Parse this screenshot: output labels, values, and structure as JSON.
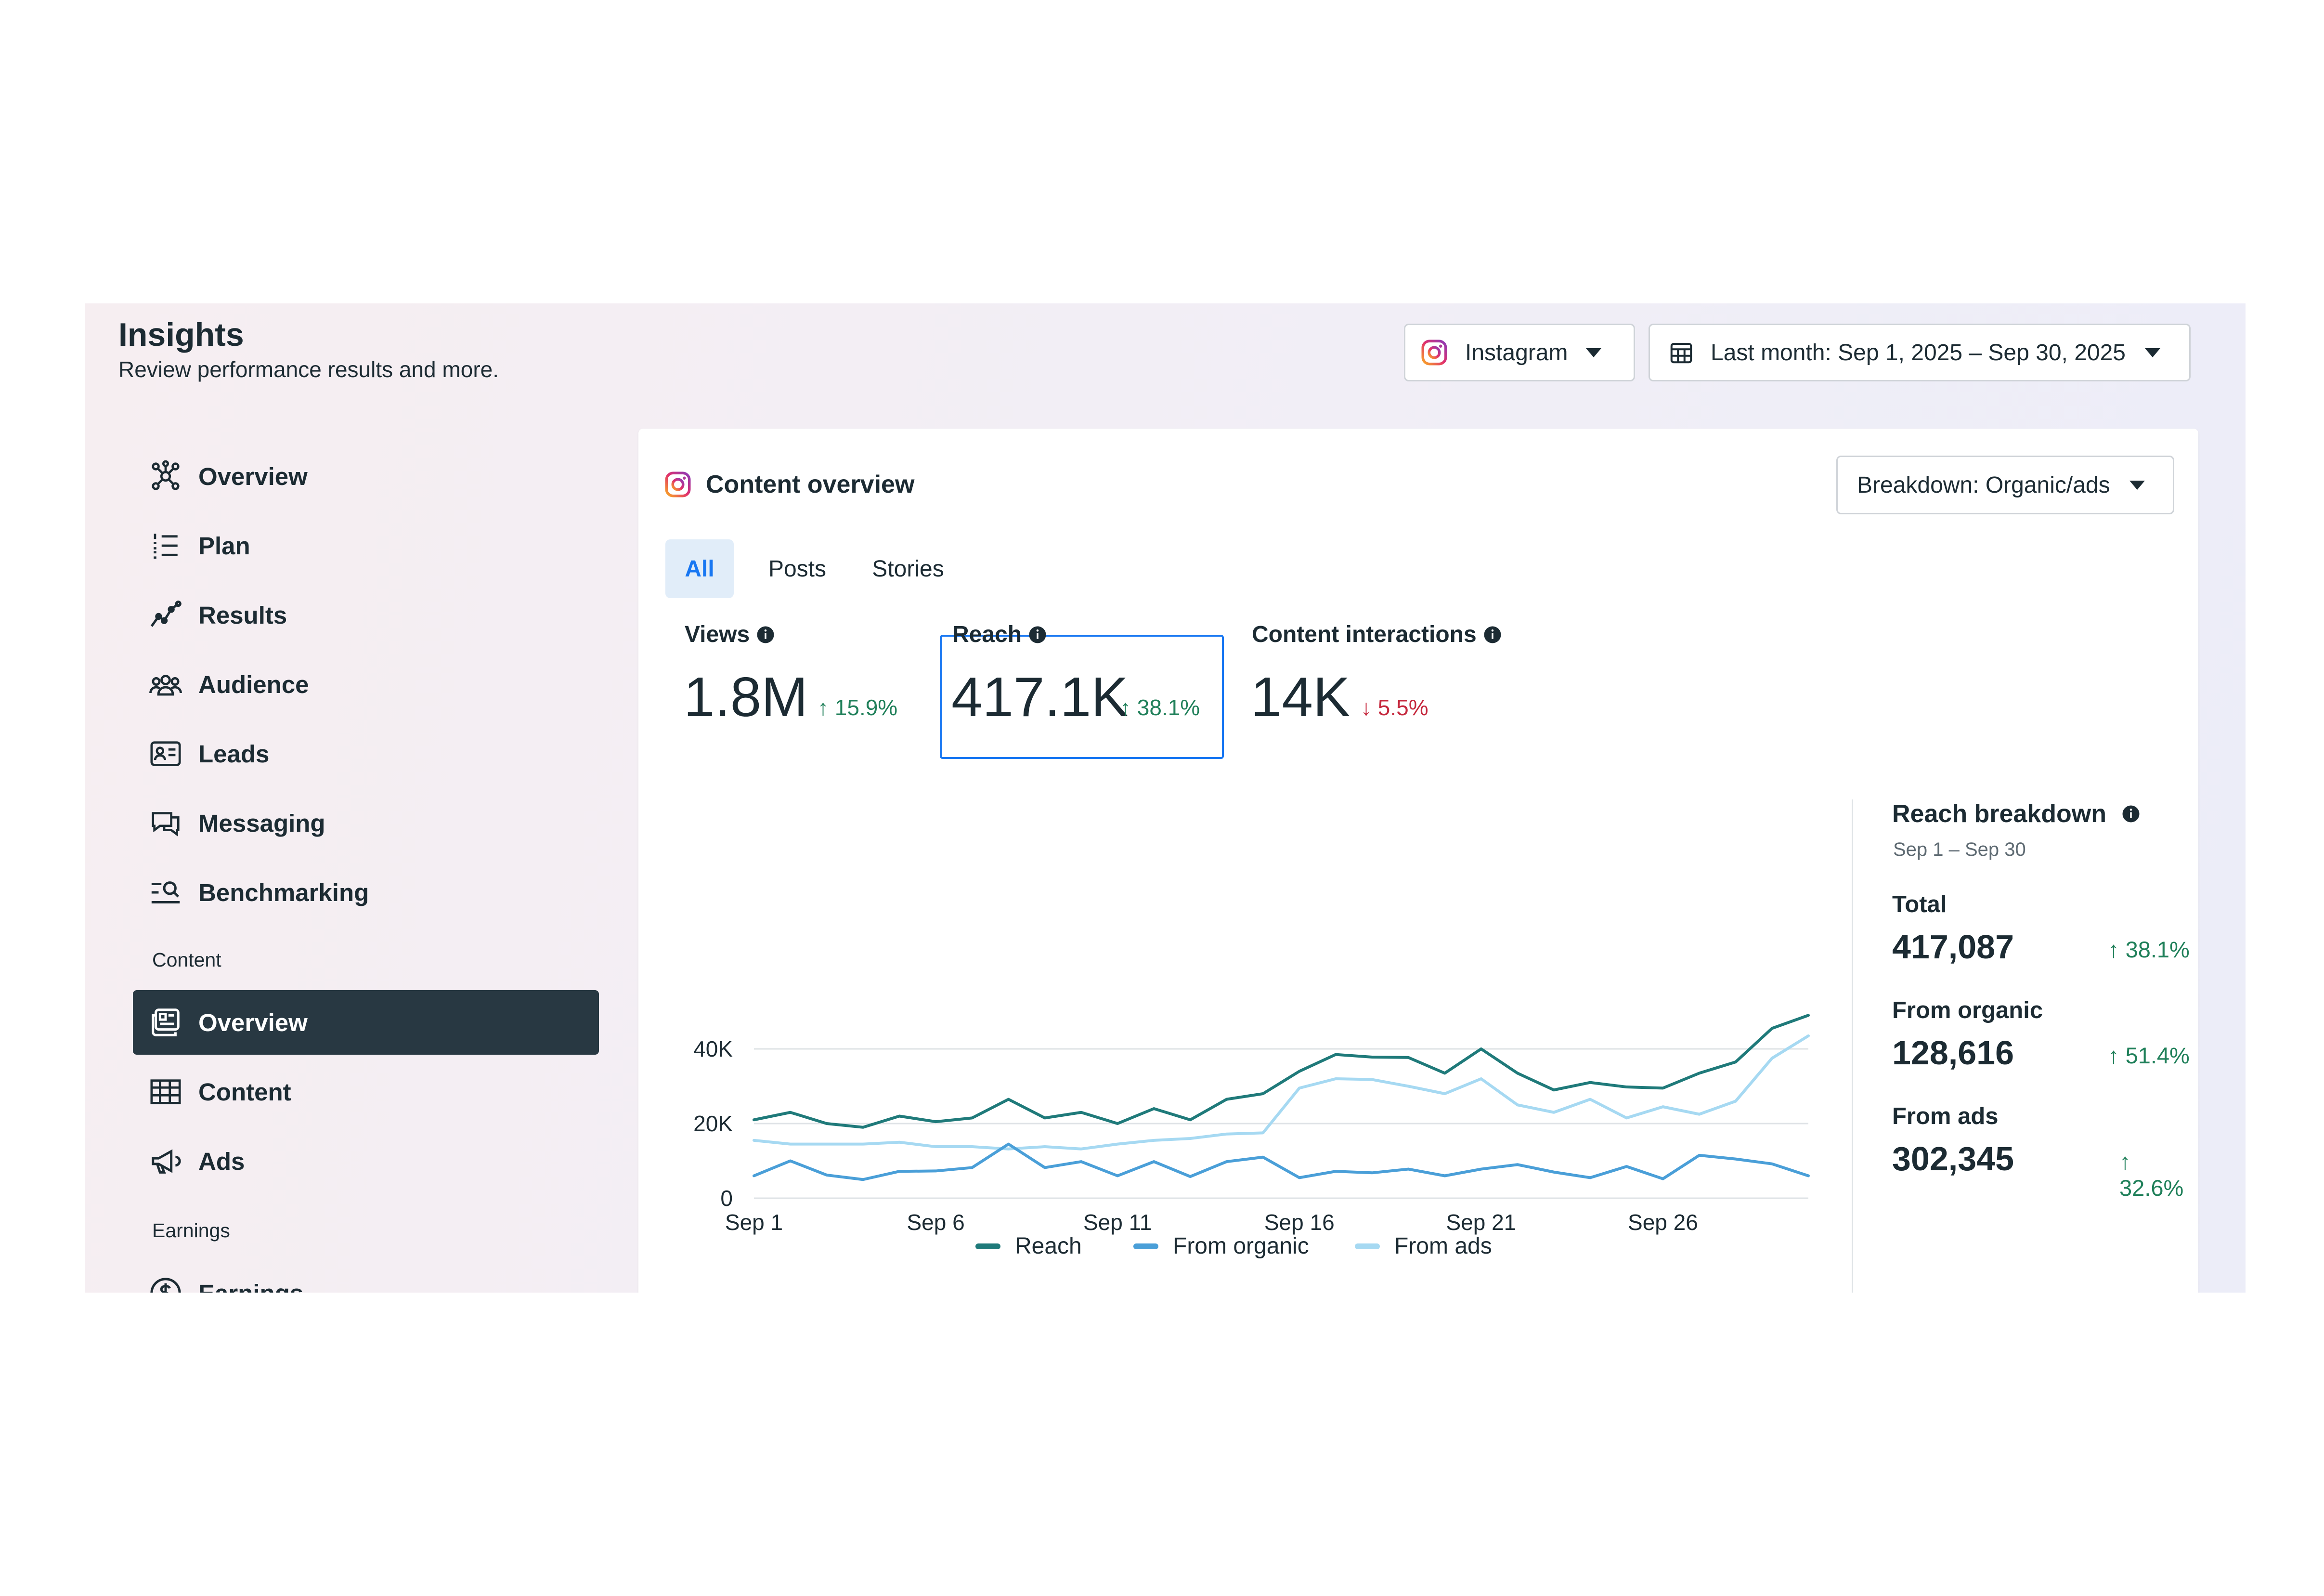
{
  "header": {
    "title": "Insights",
    "subtitle": "Review performance results and more.",
    "platform_select": "Instagram",
    "date_select": "Last month: Sep 1, 2025 – Sep 30, 2025"
  },
  "sidebar": {
    "items": [
      {
        "label": "Overview",
        "icon": "network-icon"
      },
      {
        "label": "Plan",
        "icon": "list-icon"
      },
      {
        "label": "Results",
        "icon": "trend-icon"
      },
      {
        "label": "Audience",
        "icon": "people-icon"
      },
      {
        "label": "Leads",
        "icon": "contact-card-icon"
      },
      {
        "label": "Messaging",
        "icon": "chat-icon"
      },
      {
        "label": "Benchmarking",
        "icon": "benchmark-search-icon"
      }
    ],
    "content_section": "Content",
    "content_items": [
      {
        "label": "Overview",
        "icon": "content-overview-icon",
        "active": true
      },
      {
        "label": "Content",
        "icon": "table-icon"
      },
      {
        "label": "Ads",
        "icon": "megaphone-icon"
      }
    ],
    "earnings_section": "Earnings",
    "earnings_items": [
      {
        "label": "Earnings",
        "icon": "dollar-icon"
      }
    ]
  },
  "card": {
    "title": "Content overview",
    "breakdown_select": "Breakdown: Organic/ads",
    "tabs": [
      "All",
      "Posts",
      "Stories"
    ],
    "active_tab": "All"
  },
  "metrics": [
    {
      "label": "Views",
      "value": "1.8M",
      "delta": "15.9%",
      "direction": "up"
    },
    {
      "label": "Reach",
      "value": "417.1K",
      "delta": "38.1%",
      "direction": "up"
    },
    {
      "label": "Content interactions",
      "value": "14K",
      "delta": "5.5%",
      "direction": "down"
    }
  ],
  "chart_data": {
    "type": "line",
    "title": "",
    "xlabel": "",
    "ylabel": "",
    "x": [
      1,
      2,
      3,
      4,
      5,
      6,
      7,
      8,
      9,
      10,
      11,
      12,
      13,
      14,
      15,
      16,
      17,
      18,
      19,
      20,
      21,
      22,
      23,
      24,
      25,
      26,
      27,
      28,
      29,
      30
    ],
    "x_tick_labels": [
      "Sep 1",
      "Sep 6",
      "Sep 11",
      "Sep 16",
      "Sep 21",
      "Sep 26"
    ],
    "x_tick_positions": [
      1,
      6,
      11,
      16,
      21,
      26
    ],
    "y_tick_labels": [
      "0",
      "20K",
      "40K"
    ],
    "y_tick_values": [
      0,
      20000,
      40000
    ],
    "ylim": [
      0,
      50000
    ],
    "grid": true,
    "legend_position": "bottom",
    "series": [
      {
        "name": "Reach",
        "color": "#1f7a7a",
        "values": [
          21000,
          23000,
          20000,
          19000,
          22000,
          20500,
          21500,
          26500,
          21500,
          23000,
          20000,
          24000,
          21000,
          26500,
          28000,
          34000,
          38500,
          37800,
          37700,
          33500,
          40000,
          33500,
          29000,
          31000,
          29800,
          29500,
          33500,
          36500,
          45500,
          49000
        ]
      },
      {
        "name": "From organic",
        "color": "#4a9fd8",
        "values": [
          6000,
          10000,
          6200,
          5000,
          7200,
          7300,
          8200,
          14500,
          8200,
          9800,
          6000,
          9800,
          5800,
          9800,
          11000,
          5500,
          7200,
          6800,
          7800,
          6000,
          7800,
          9000,
          7000,
          5500,
          8500,
          5200,
          11500,
          10500,
          9200,
          6000
        ]
      },
      {
        "name": "From ads",
        "color": "#a6d9f2",
        "values": [
          15500,
          14500,
          14500,
          14500,
          15000,
          13800,
          13800,
          13200,
          13800,
          13200,
          14500,
          15500,
          16000,
          17200,
          17500,
          29500,
          32000,
          31800,
          30000,
          28000,
          32000,
          25000,
          23000,
          26500,
          21500,
          24500,
          22500,
          26000,
          37500,
          43500
        ]
      }
    ]
  },
  "reach_breakdown": {
    "title": "Reach breakdown",
    "date_range": "Sep 1 – Sep 30",
    "rows": [
      {
        "label": "Total",
        "value": "417,087",
        "delta": "38.1%"
      },
      {
        "label": "From organic",
        "value": "128,616",
        "delta": "51.4%"
      },
      {
        "label": "From ads",
        "value": "302,345",
        "delta": "32.6%"
      }
    ]
  },
  "colors": {
    "accent": "#1877f2",
    "up": "#20805a",
    "down": "#c5283d",
    "active_nav": "#283842"
  }
}
